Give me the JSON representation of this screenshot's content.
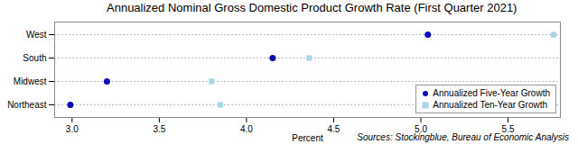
{
  "chart_data": {
    "type": "scatter",
    "title": "Annualized Nominal Gross Domestic Product Growth Rate (First Quarter 2021)",
    "categories": [
      "West",
      "South",
      "Midwest",
      "Northeast"
    ],
    "series": [
      {
        "name": "Annualized Five-Year Growth",
        "color": "#0a0ab4",
        "marker": "circle",
        "values": [
          5.04,
          4.15,
          3.2,
          2.99
        ]
      },
      {
        "name": "Annualized Ten-Year Growth",
        "color": "#a9d6e6",
        "marker": "square",
        "values": [
          5.76,
          4.36,
          3.8,
          3.85
        ]
      }
    ],
    "xlabel": "Percent",
    "xlim": [
      2.9,
      5.8
    ],
    "xticks": [
      {
        "value": 3,
        "label": "3.0"
      },
      3.5,
      {
        "value": 4,
        "label": "4.0"
      },
      4.5,
      {
        "value": 5,
        "label": "5.0"
      },
      5.5
    ],
    "orientation": "horizontal",
    "grid": true,
    "legend": "lower right",
    "annotations": [
      "Sources: Stockingblue, Bureau of Economic Analysis"
    ]
  }
}
